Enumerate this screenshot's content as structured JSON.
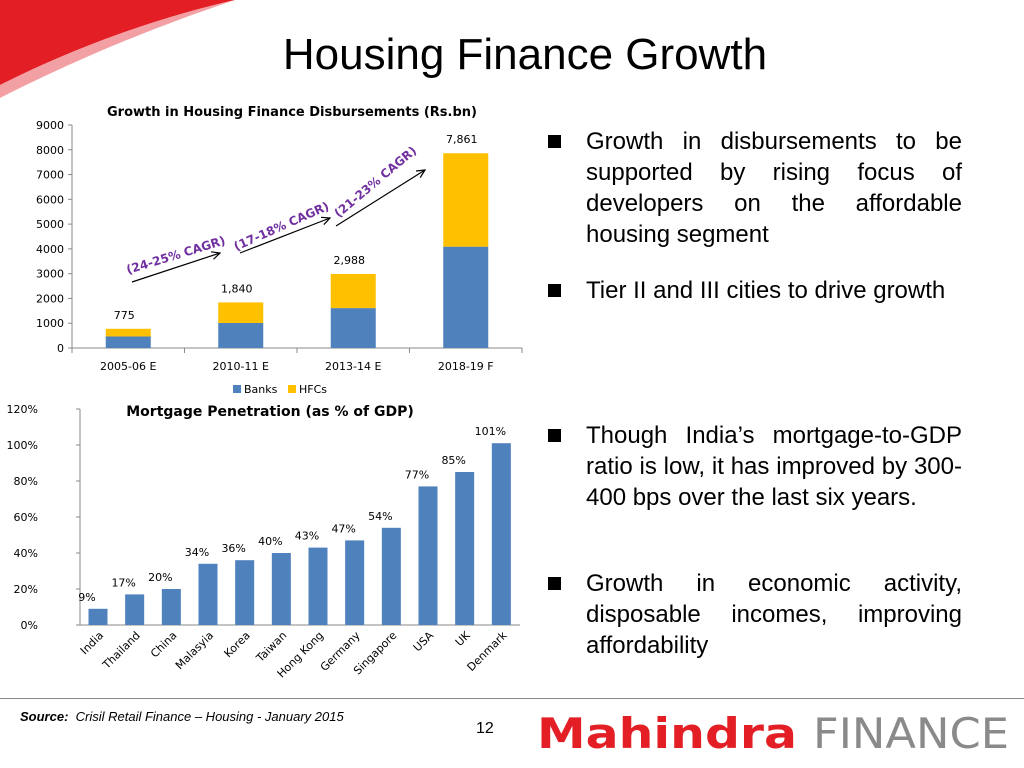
{
  "slide_title": "Housing Finance Growth",
  "chart_data": [
    {
      "type": "bar",
      "stacked": true,
      "title": "Growth in Housing Finance Disbursements (Rs.bn)",
      "categories": [
        "2005-06 E",
        "2010-11 E",
        "2013-14 E",
        "2018-19 F"
      ],
      "series": [
        {
          "name": "Banks",
          "color": "#4f81bd",
          "values": [
            465,
            1010,
            1610,
            4090
          ]
        },
        {
          "name": "HFCs",
          "color": "#ffc000",
          "values": [
            310,
            830,
            1378,
            3771
          ]
        }
      ],
      "totals": [
        775,
        1840,
        2988,
        7861
      ],
      "total_labels": [
        "775",
        "1,840",
        "2,988",
        "7,861"
      ],
      "ylim": [
        0,
        9000
      ],
      "yticks": [
        0,
        1000,
        2000,
        3000,
        4000,
        5000,
        6000,
        7000,
        8000,
        9000
      ],
      "ytick_labels": [
        "0",
        "1000",
        "2000",
        "3000",
        "4000",
        "5000",
        "6000",
        "7000",
        "8000",
        "9000"
      ],
      "legend": "bottom",
      "annotations": [
        "(24-25% CAGR)",
        "(17-18% CAGR)",
        "(21-23% CAGR)"
      ]
    },
    {
      "type": "bar",
      "title": "Mortgage Penetration (as % of GDP)",
      "categories": [
        "India",
        "Thailand",
        "China",
        "Malasyia",
        "Korea",
        "Taiwan",
        "Hong Kong",
        "Germany",
        "Singapore",
        "USA",
        "UK",
        "Denmark"
      ],
      "series": [
        {
          "color": "#4f81bd",
          "values": [
            9,
            17,
            20,
            34,
            36,
            40,
            43,
            47,
            54,
            77,
            85,
            101
          ]
        }
      ],
      "value_labels": [
        "9%",
        "17%",
        "20%",
        "34%",
        "36%",
        "40%",
        "43%",
        "47%",
        "54%",
        "77%",
        "85%",
        "101%"
      ],
      "ylim": [
        0,
        120
      ],
      "yticks": [
        0,
        20,
        40,
        60,
        80,
        100,
        120
      ],
      "ytick_labels": [
        "0%",
        "20%",
        "40%",
        "60%",
        "80%",
        "100%",
        "120%"
      ]
    }
  ],
  "bullets": [
    {
      "text": "Growth in disbursements to be supported by rising focus of developers on the affordable housing segment"
    },
    {
      "text": "Tier II and III cities to drive growth"
    },
    {
      "text": "Though India’s mortgage-to-GDP ratio is low, it has improved by 300-400 bps over the last six years."
    },
    {
      "text": "Growth in economic activity, disposable incomes, improving affordability"
    }
  ],
  "footer": {
    "source_label": "Source:",
    "source_text": "Crisil Retail Finance – Housing - January 2015",
    "page_number": "12",
    "logo_text_brand": "Mahindra",
    "logo_text_suffix": "FINANCE",
    "brand_color": "#e31e24"
  }
}
